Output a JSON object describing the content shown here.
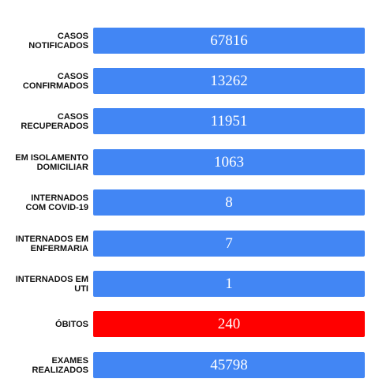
{
  "colors": {
    "bar_default": "#4286f4",
    "bar_danger": "#ff0000",
    "label_text": "#111111",
    "value_text": "#ffffff",
    "background": "#ffffff"
  },
  "stats": [
    {
      "label": "CASOS\nNOTIFICADOS",
      "value": "67816"
    },
    {
      "label": "CASOS\nCONFIRMADOS",
      "value": "13262"
    },
    {
      "label": "CASOS\nRECUPERADOS",
      "value": "11951"
    },
    {
      "label": "EM ISOLAMENTO\nDOMICILIAR",
      "value": "1063"
    },
    {
      "label": "INTERNADOS\nCOM COVID-19",
      "value": "8"
    },
    {
      "label": "INTERNADOS EM\nENFERMARIA",
      "value": "7"
    },
    {
      "label": "INTERNADOS EM\nUTI",
      "value": "1"
    },
    {
      "label": "ÓBITOS",
      "value": "240"
    },
    {
      "label": "EXAMES\nREALIZADOS",
      "value": "45798"
    }
  ]
}
